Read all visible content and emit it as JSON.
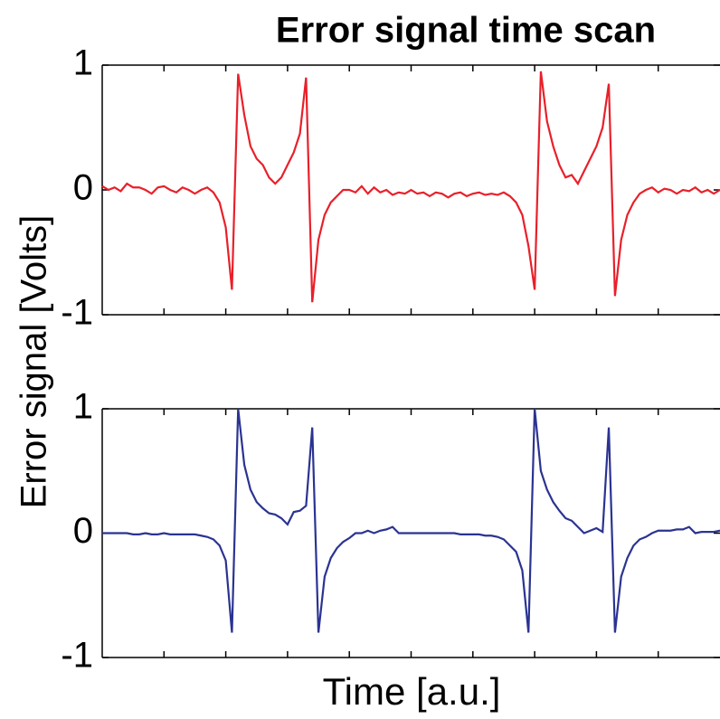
{
  "chart_data": [
    {
      "type": "line",
      "title": "Error signal time scan",
      "ylabel": "Error signal [Volts]",
      "color": "#e8202a",
      "ylim": [
        -1,
        1
      ],
      "yticks": [
        -1,
        0,
        1
      ],
      "values": [
        0.03,
        0.0,
        0.02,
        -0.01,
        0.05,
        0.02,
        0.02,
        0.0,
        -0.03,
        0.02,
        0.03,
        0.0,
        -0.02,
        0.02,
        0.0,
        -0.03,
        0.0,
        0.02,
        -0.02,
        -0.1,
        -0.3,
        -0.8,
        0.93,
        0.6,
        0.35,
        0.25,
        0.2,
        0.1,
        0.05,
        0.1,
        0.2,
        0.3,
        0.45,
        0.9,
        -0.9,
        -0.4,
        -0.2,
        -0.1,
        -0.05,
        0.0,
        0.0,
        -0.02,
        0.03,
        -0.03,
        0.02,
        -0.02,
        0.0,
        -0.04,
        -0.02,
        -0.03,
        0.0,
        -0.03,
        -0.02,
        -0.05,
        -0.02,
        -0.03,
        -0.06,
        -0.03,
        -0.02,
        -0.05,
        -0.03,
        -0.02,
        -0.04,
        -0.03,
        -0.04,
        -0.02,
        -0.05,
        -0.1,
        -0.2,
        -0.45,
        -0.8,
        0.95,
        0.55,
        0.35,
        0.2,
        0.1,
        0.12,
        0.05,
        0.15,
        0.25,
        0.35,
        0.5,
        0.85,
        -0.85,
        -0.4,
        -0.2,
        -0.1,
        -0.03,
        0.0,
        0.02,
        -0.02,
        0.01,
        0.0,
        -0.03,
        0.0,
        -0.01,
        0.02,
        -0.02,
        0.0,
        -0.03,
        0.0
      ]
    },
    {
      "type": "line",
      "xlabel": "Time [a.u.]",
      "color": "#2b3391",
      "ylim": [
        -1,
        1
      ],
      "yticks": [
        -1,
        0,
        1
      ],
      "values": [
        0.0,
        0.0,
        0.0,
        0.0,
        0.0,
        -0.01,
        -0.01,
        0.0,
        -0.01,
        -0.01,
        0.0,
        -0.01,
        -0.01,
        -0.01,
        -0.01,
        -0.01,
        -0.02,
        -0.03,
        -0.05,
        -0.1,
        -0.22,
        -0.8,
        1.0,
        0.55,
        0.35,
        0.25,
        0.2,
        0.16,
        0.15,
        0.12,
        0.07,
        0.17,
        0.18,
        0.22,
        0.85,
        -0.8,
        -0.35,
        -0.2,
        -0.12,
        -0.07,
        -0.04,
        0.0,
        0.0,
        0.02,
        0.0,
        0.02,
        0.03,
        0.05,
        0.0,
        0.0,
        0.0,
        0.0,
        0.0,
        0.0,
        0.0,
        0.0,
        0.0,
        0.0,
        -0.01,
        -0.01,
        -0.01,
        -0.01,
        -0.02,
        -0.02,
        -0.03,
        -0.05,
        -0.1,
        -0.15,
        -0.3,
        -0.8,
        1.0,
        0.5,
        0.35,
        0.25,
        0.18,
        0.12,
        0.1,
        0.05,
        0.0,
        0.02,
        0.04,
        0.01,
        0.85,
        -0.8,
        -0.35,
        -0.2,
        -0.1,
        -0.05,
        -0.03,
        0.0,
        0.02,
        0.02,
        0.02,
        0.03,
        0.03,
        0.05,
        0.0,
        0.01,
        0.01,
        0.01,
        0.02
      ]
    }
  ]
}
